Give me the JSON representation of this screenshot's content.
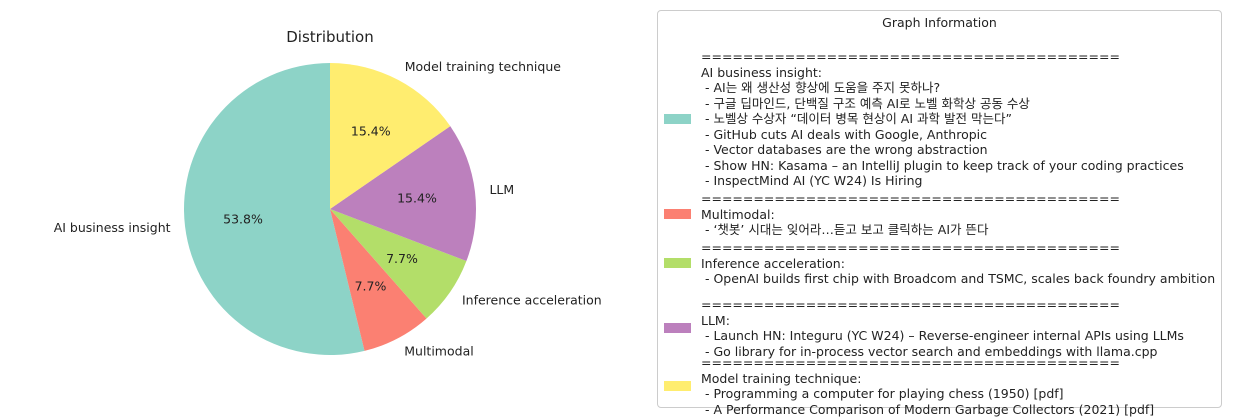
{
  "chart_data": {
    "type": "pie",
    "title": "Distribution",
    "slices": [
      {
        "label": "AI business insight",
        "value": 53.8,
        "pct_label": "53.8%",
        "color": "#8dd3c7"
      },
      {
        "label": "Multimodal",
        "value": 7.7,
        "pct_label": "7.7%",
        "color": "#fb8072"
      },
      {
        "label": "Inference acceleration",
        "value": 7.7,
        "pct_label": "7.7%",
        "color": "#b3de69"
      },
      {
        "label": "LLM",
        "value": 15.4,
        "pct_label": "15.4%",
        "color": "#bc80bd"
      },
      {
        "label": "Model training technique",
        "value": 15.4,
        "pct_label": "15.4%",
        "color": "#ffed6f"
      }
    ],
    "start_angle": "90 degrees, counterclockwise"
  },
  "legend": {
    "title": "Graph Information",
    "groups": [
      {
        "color": "#8dd3c7",
        "lines": [
          "========================================",
          "AI business insight:",
          " - AI는 왜 생산성 향상에 도움을 주지 못하나?",
          " - 구글 딥마인드, 단백질 구조 예측 AI로 노벨 화학상 공동 수상",
          " - 노벨상 수상자 “데이터 병목 현상이 AI 과학 발전 막는다”",
          " - GitHub cuts AI deals with Google, Anthropic",
          " - Vector databases are the wrong abstraction",
          " - Show HN: Kasama – an IntelliJ plugin to keep track of your coding practices",
          " - InspectMind AI (YC W24) Is Hiring"
        ]
      },
      {
        "color": "#fb8072",
        "lines": [
          "========================================",
          "Multimodal:",
          " - ‘챗봇’ 시대는 잊어라…듣고 보고 클릭하는 AI가 뜬다"
        ]
      },
      {
        "color": "#b3de69",
        "lines": [
          "========================================",
          "Inference acceleration:",
          " - OpenAI builds first chip with Broadcom and TSMC, scales back foundry ambition"
        ]
      },
      {
        "color": "#bc80bd",
        "lines": [
          "========================================",
          "LLM:",
          " - Launch HN: Integuru (YC W24) – Reverse-engineer internal APIs using LLMs",
          " - Go library for in-process vector search and embeddings with llama.cpp"
        ]
      },
      {
        "color": "#ffed6f",
        "lines": [
          "========================================",
          "Model training technique:",
          " - Programming a computer for playing chess (1950) [pdf]",
          " - A Performance Comparison of Modern Garbage Collectors (2021) [pdf]"
        ]
      }
    ]
  }
}
